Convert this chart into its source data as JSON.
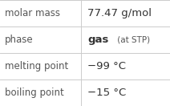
{
  "rows": [
    {
      "label": "molar mass",
      "value_parts": [
        {
          "text": "77.47 g/mol",
          "bold": false,
          "fontsize": 9.5
        }
      ]
    },
    {
      "label": "phase",
      "value_parts": [
        {
          "text": "gas",
          "bold": true,
          "fontsize": 9.5
        },
        {
          "text": " (at STP)",
          "bold": false,
          "fontsize": 7.5
        }
      ]
    },
    {
      "label": "melting point",
      "value_parts": [
        {
          "text": "−99 °C",
          "bold": false,
          "fontsize": 9.5
        }
      ]
    },
    {
      "label": "boiling point",
      "value_parts": [
        {
          "text": "−15 °C",
          "bold": false,
          "fontsize": 9.5
        }
      ]
    }
  ],
  "col_split": 0.475,
  "background": "#ffffff",
  "grid_color": "#cccccc",
  "label_fontsize": 8.5,
  "text_color": "#333333",
  "label_color": "#555555"
}
